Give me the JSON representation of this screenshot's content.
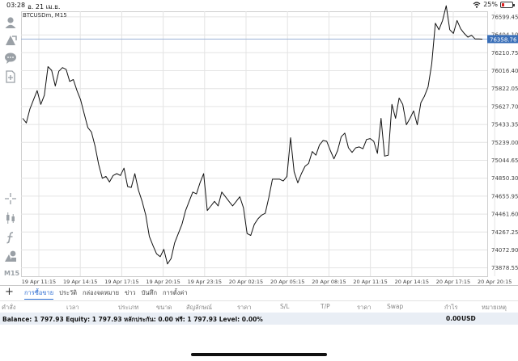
{
  "status": {
    "time": "03:28",
    "date": "อ. 21 เม.ย.",
    "battery": "25%",
    "battery_level": 0.25
  },
  "chart": {
    "symbol_label": "BTCUSDm, M15",
    "current_price_label": "76358.76",
    "price_line_color": "#9db3d6",
    "price_tag_color": "#3a6fb8",
    "line_color": "#111111",
    "grid_color": "#e4e4e4"
  },
  "chart_data": {
    "type": "line",
    "series": [
      {
        "values": [
          75500,
          75450,
          75600,
          75700,
          75800,
          75650,
          75750,
          76060,
          76020,
          75850,
          76010,
          76050,
          76030,
          75900,
          75920,
          75800,
          75700,
          75550,
          75400,
          75350,
          75200,
          75000,
          74850,
          74870,
          74810,
          74880,
          74900,
          74880,
          74960,
          74760,
          74750,
          74900,
          74720,
          74600,
          74450,
          74220,
          74120,
          74030,
          74000,
          74080,
          73920,
          73980,
          74150,
          74250,
          74350,
          74500,
          74600,
          74700,
          74680,
          74800,
          74900,
          74500,
          74550,
          74600,
          74550,
          74700,
          74650,
          74600,
          74550,
          74600,
          74650,
          74530,
          74250,
          74230,
          74350,
          74410,
          74450,
          74470,
          74640,
          74840,
          74840,
          74840,
          74820,
          74870,
          75290,
          74920,
          74800,
          74900,
          74980,
          75010,
          75140,
          75100,
          75210,
          75260,
          75250,
          75150,
          75060,
          75150,
          75300,
          75340,
          75180,
          75130,
          75180,
          75190,
          75170,
          75270,
          75280,
          75250,
          75120,
          75500,
          75090,
          75100,
          75650,
          75500,
          75720,
          75650,
          75430,
          75500,
          75580,
          75430,
          75670,
          75740,
          75840,
          76090,
          76530,
          76460,
          76560,
          76720,
          76460,
          76420,
          76560,
          76470,
          76420,
          76380,
          76400,
          76360,
          76360,
          76358
        ]
      }
    ],
    "x_tick_labels": [
      "19 Apr 11:15",
      "19 Apr 14:15",
      "19 Apr 17:15",
      "19 Apr 20:15",
      "19 Apr 23:15",
      "20 Apr 02:15",
      "20 Apr 05:15",
      "20 Apr 08:15",
      "20 Apr 11:15",
      "20 Apr 14:15",
      "20 Apr 17:15",
      "20 Apr 20:15"
    ],
    "y_tick_labels": [
      "76599.45",
      "76404.10",
      "76210.75",
      "76016.40",
      "75822.05",
      "75627.70",
      "75433.35",
      "75239.00",
      "75044.65",
      "74850.30",
      "74655.95",
      "74461.60",
      "74267.25",
      "74072.90",
      "73878.55"
    ],
    "ylim": [
      73788,
      76660
    ],
    "grid": true
  },
  "tabs": [
    "การซื้อขาย",
    "ประวัติ",
    "กล่องจดหมาย",
    "ข่าว",
    "บันทึก",
    "การตั้งค่า"
  ],
  "active_tab": 0,
  "columns": [
    "คำสั่ง",
    "เวลา",
    "ประเภท",
    "ขนาด",
    "สัญลักษณ์",
    "ราคา",
    "S/L",
    "T/P",
    "ราคา",
    "Swap",
    "กำไร",
    "หมายเหตุ"
  ],
  "balance": {
    "text": "Balance: 1 797.93  Equity: 1 797.93  หลักประกัน: 0.00  ฟรี: 1 797.93  Level: 0.00%",
    "profit": "0.00",
    "currency": "USD"
  },
  "sidebar": {
    "icons": [
      "user-icon",
      "trade-icon",
      "chat-icon",
      "add-file-icon",
      "crosshair-icon",
      "candles-icon",
      "function-icon",
      "shapes-icon"
    ],
    "timeframe": "M15"
  }
}
